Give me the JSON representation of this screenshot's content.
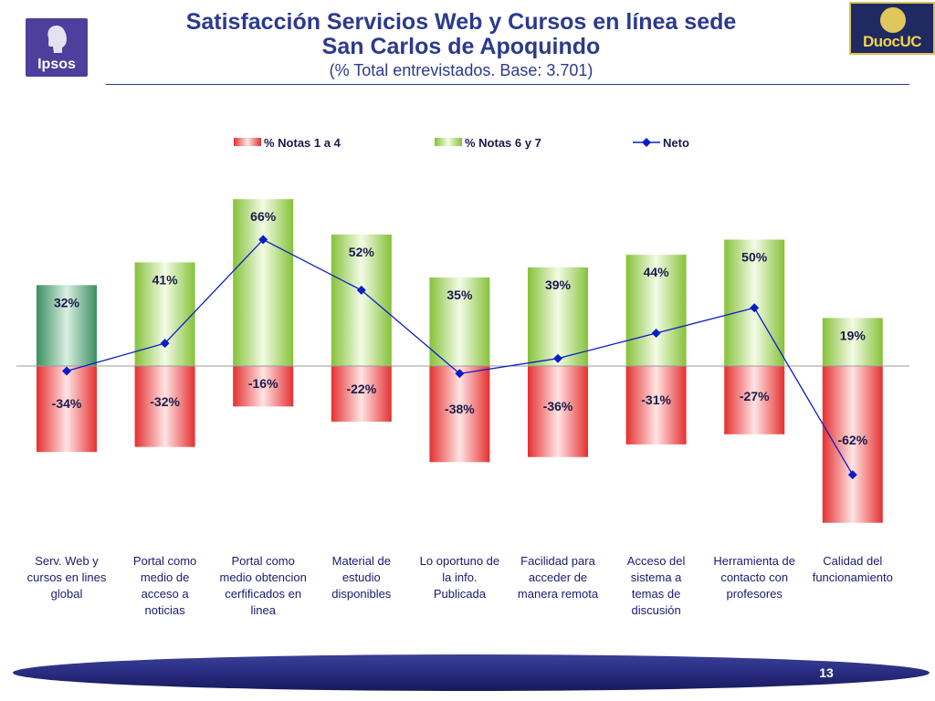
{
  "header": {
    "title_line1": "Satisfacción Servicios Web y Cursos en línea sede",
    "title_line2": "San Carlos de Apoquindo",
    "subtitle": "(% Total entrevistados. Base: 3.701)"
  },
  "logos": {
    "left_text": "Ipsos",
    "right_text": "DuocUC"
  },
  "footer": {
    "page_number": "13"
  },
  "colors": {
    "negative": "#e23636",
    "positive": "#8fc740",
    "highlight": "#3f9466",
    "line": "#0a1ec8",
    "title": "#2c3a8c",
    "category_text": "#1a1a6e"
  },
  "chart_data": {
    "type": "bar",
    "categories": [
      "Serv. Web y\ncursos en lines\nglobal",
      "Portal como\nmedio de\nacceso a\nnoticias",
      "Portal como\nmedio obtencion\ncerfificados en\nlinea",
      "Material de\nestudio\ndisponibles",
      "Lo oportuno de\nla info.\nPublicada",
      "Facilidad para\nacceder de\nmanera remota",
      "Acceso del\nsistema a\ntemas de\ndiscusión",
      "Herramienta de\ncontacto con\nprofesores",
      "Calidad del\nfuncionamiento"
    ],
    "series": [
      {
        "name": "% Notas 1 a 4",
        "values": [
          -34,
          -32,
          -16,
          -22,
          -38,
          -36,
          -31,
          -27,
          -62
        ],
        "labels": [
          "-34%",
          "-32%",
          "-16%",
          "-22%",
          "-38%",
          "-36%",
          "-31%",
          "-27%",
          "-62%"
        ]
      },
      {
        "name": "% Notas 6 y 7",
        "values": [
          32,
          41,
          66,
          52,
          35,
          39,
          44,
          50,
          19
        ],
        "labels": [
          "32%",
          "41%",
          "66%",
          "52%",
          "35%",
          "39%",
          "44%",
          "50%",
          "19%"
        ]
      },
      {
        "name": "Neto",
        "type": "line",
        "values": [
          -2,
          9,
          50,
          30,
          -3,
          3,
          13,
          23,
          -43
        ]
      }
    ],
    "ylim": [
      -62,
      66
    ],
    "legend": "top",
    "grid": false
  }
}
